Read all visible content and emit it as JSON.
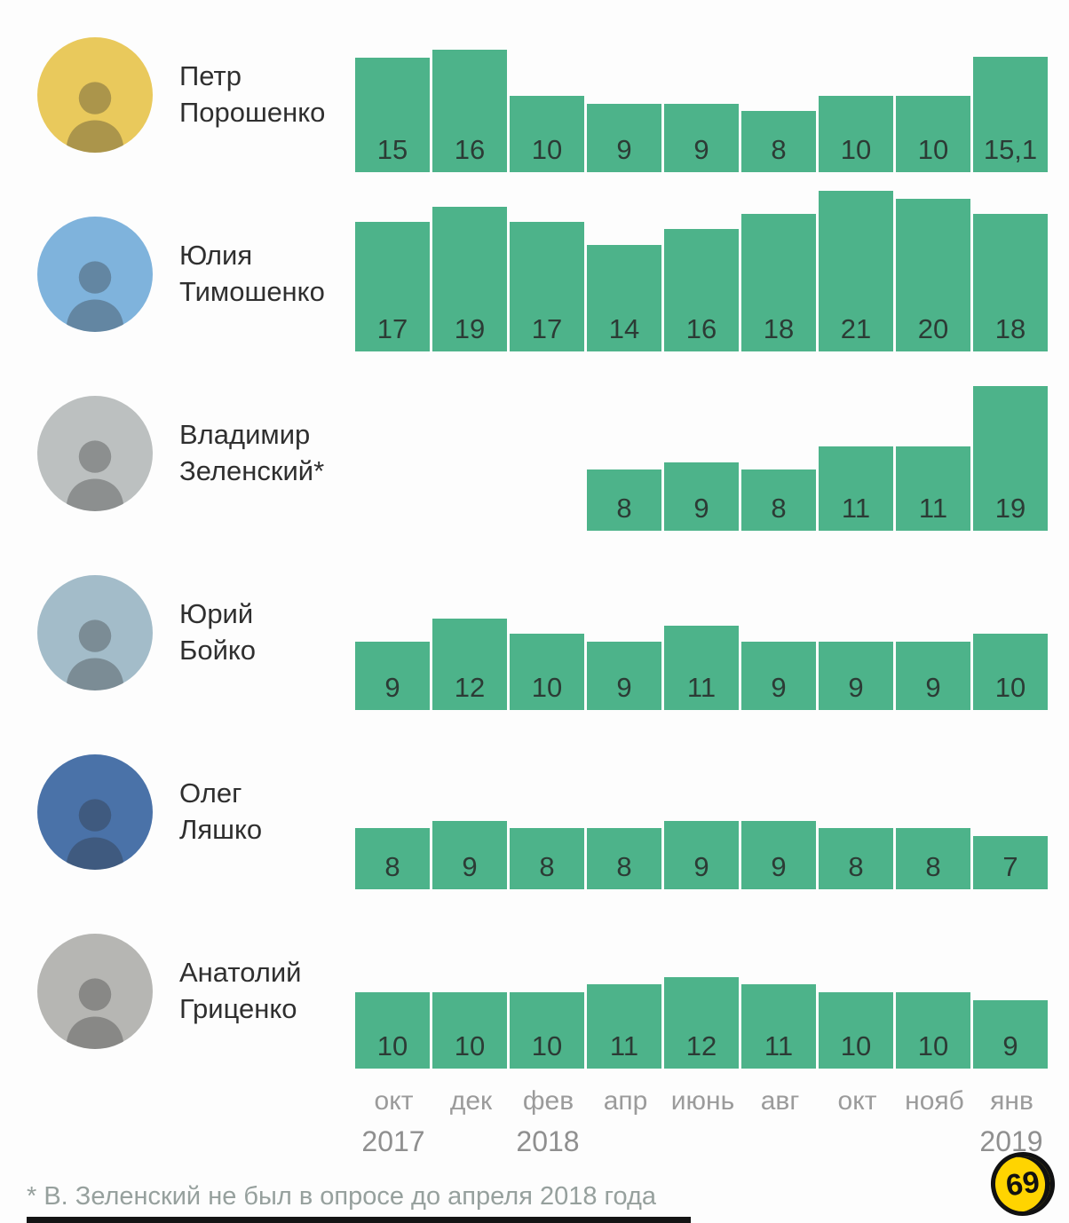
{
  "chart_data": {
    "type": "bar",
    "title": "",
    "categories": [
      "окт",
      "дек",
      "фев",
      "апр",
      "июнь",
      "авг",
      "окт",
      "нояб",
      "янв"
    ],
    "year_labels": [
      {
        "col": 0,
        "label": "2017"
      },
      {
        "col": 2,
        "label": "2018"
      },
      {
        "col": 8,
        "label": "2019"
      }
    ],
    "ylim": [
      0,
      21
    ],
    "bar_color": "#4db38a",
    "series": [
      {
        "name": "Петр Порошенко",
        "name_lines": [
          "Петр",
          "Порошенко"
        ],
        "avatar_color": "#e9c95c",
        "values": [
          15,
          16,
          10,
          9,
          9,
          8,
          10,
          10,
          15.1
        ],
        "labels": [
          "15",
          "16",
          "10",
          "9",
          "9",
          "8",
          "10",
          "10",
          "15,1"
        ]
      },
      {
        "name": "Юлия Тимошенко",
        "name_lines": [
          "Юлия",
          "Тимошенко"
        ],
        "avatar_color": "#7fb3dc",
        "values": [
          17,
          19,
          17,
          14,
          16,
          18,
          21,
          20,
          18
        ],
        "labels": [
          "17",
          "19",
          "17",
          "14",
          "16",
          "18",
          "21",
          "20",
          "18"
        ]
      },
      {
        "name": "Владимир Зеленский*",
        "name_lines": [
          "Владимир",
          "Зеленский*"
        ],
        "avatar_color": "#bcc0c0",
        "values": [
          null,
          null,
          null,
          8,
          9,
          8,
          11,
          11,
          19
        ],
        "labels": [
          "",
          "",
          "",
          "8",
          "9",
          "8",
          "11",
          "11",
          "19"
        ]
      },
      {
        "name": "Юрий Бойко",
        "name_lines": [
          "Юрий",
          "Бойко"
        ],
        "avatar_color": "#a3bcc9",
        "values": [
          9,
          12,
          10,
          9,
          11,
          9,
          9,
          9,
          10
        ],
        "labels": [
          "9",
          "12",
          "10",
          "9",
          "11",
          "9",
          "9",
          "9",
          "10"
        ]
      },
      {
        "name": "Олег Ляшко",
        "name_lines": [
          "Олег",
          "Ляшко"
        ],
        "avatar_color": "#4a72a8",
        "values": [
          8,
          9,
          8,
          8,
          9,
          9,
          8,
          8,
          7
        ],
        "labels": [
          "8",
          "9",
          "8",
          "8",
          "9",
          "9",
          "8",
          "8",
          "7"
        ]
      },
      {
        "name": "Анатолий Гриценко",
        "name_lines": [
          "Анатолий",
          "Гриценко"
        ],
        "avatar_color": "#b6b6b3",
        "values": [
          10,
          10,
          10,
          11,
          12,
          11,
          10,
          10,
          9
        ],
        "labels": [
          "10",
          "10",
          "10",
          "11",
          "12",
          "11",
          "10",
          "10",
          "9"
        ]
      }
    ]
  },
  "footnote": "* В. Зеленский не был в опросе до апреля 2018 года",
  "logo_text": "69",
  "colors": {
    "bar": "#4db38a",
    "bar_value_text": "#2c3b35",
    "name_text": "#2f2f2f",
    "axis_text": "#9b9b9b",
    "footnote_text": "#96a09d",
    "logo_bg": "#ffd400"
  }
}
